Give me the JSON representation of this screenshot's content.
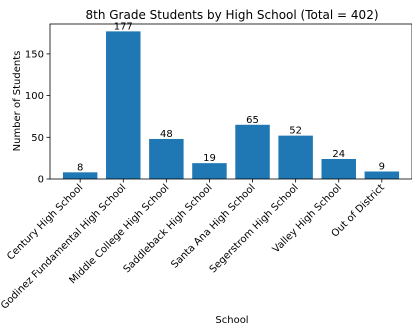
{
  "chart_data": {
    "type": "bar",
    "title": "8th Grade Students by High School (Total = 402)",
    "xlabel": "School",
    "ylabel": "Number of Students",
    "categories": [
      "Century High School",
      "Godinez Fundamental High School",
      "Middle College High School",
      "Saddleback High School",
      "Santa Ana High School",
      "Segerstrom High School",
      "Valley High School",
      "Out of District"
    ],
    "values": [
      8,
      177,
      48,
      19,
      65,
      52,
      24,
      9
    ],
    "data_labels": [
      "8",
      "177",
      "48",
      "19",
      "65",
      "52",
      "24",
      "9"
    ],
    "yticks": [
      0,
      50,
      100,
      150
    ],
    "ytick_labels": [
      "0",
      "50",
      "100",
      "150"
    ],
    "ylim": [
      0,
      185.85
    ],
    "grid": false,
    "legend": "none",
    "bar_color": "#1f77b4"
  }
}
